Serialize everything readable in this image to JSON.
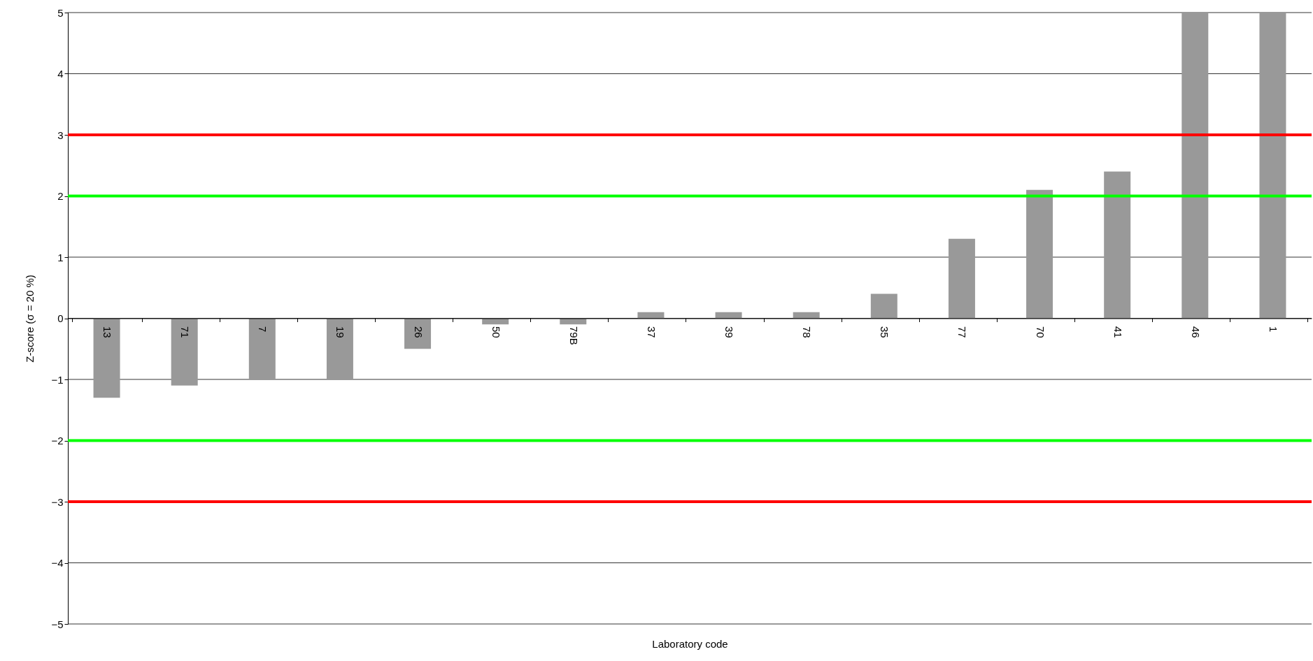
{
  "chart_data": {
    "type": "bar",
    "xlabel": "Laboratory code",
    "ylabel": "Z-score (σ = 20 %)",
    "categories": [
      "13",
      "71",
      "7",
      "19",
      "26",
      "50",
      "79B",
      "37",
      "39",
      "78",
      "35",
      "77",
      "70",
      "41",
      "46",
      "1"
    ],
    "values": [
      -1.3,
      -1.1,
      -1.0,
      -1.0,
      -0.5,
      -0.1,
      -0.1,
      0.1,
      0.1,
      0.1,
      0.4,
      1.3,
      2.1,
      2.4,
      5,
      5
    ],
    "color": "#999999",
    "ylim": [
      -5,
      5
    ],
    "yticks": [
      -5,
      -4,
      -3,
      -2,
      -1,
      0,
      1,
      2,
      3,
      4,
      5
    ],
    "grid": "y",
    "ref_lines": [
      {
        "axis": "y",
        "value": 3,
        "color": "#ff0000"
      },
      {
        "axis": "y",
        "value": -3,
        "color": "#ff0000"
      },
      {
        "axis": "y",
        "value": 2,
        "color": "#00ff00"
      },
      {
        "axis": "y",
        "value": -2,
        "color": "#00ff00"
      }
    ]
  }
}
